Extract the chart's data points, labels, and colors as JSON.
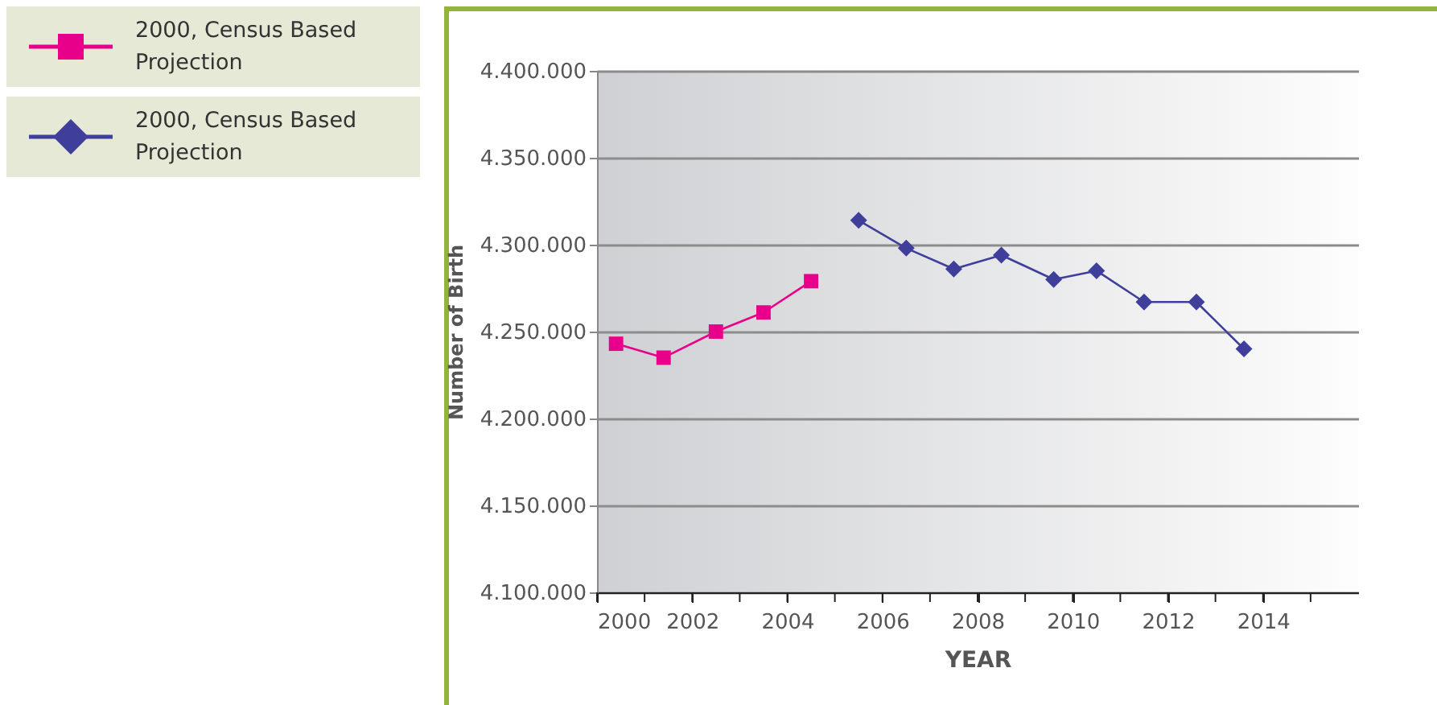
{
  "chart_data": {
    "type": "line",
    "xlabel": "YEAR",
    "ylabel": "Number of Birth",
    "xlim": [
      2000,
      2016
    ],
    "xticks": [
      2000,
      {
        "value": 2001,
        "label": null
      },
      2002,
      {
        "value": 2003,
        "label": null
      },
      2004,
      {
        "value": 2005,
        "label": null
      },
      2006,
      {
        "value": 2007,
        "label": null
      },
      2008,
      {
        "value": 2009,
        "label": null
      },
      2010,
      {
        "value": 2011,
        "label": null
      },
      2012,
      {
        "value": 2013,
        "label": null
      },
      2014,
      {
        "value": 2015,
        "label": null
      }
    ],
    "ylim": [
      4100000,
      4400000
    ],
    "yticks": [
      {
        "value": 4100000,
        "label": "4.100.000"
      },
      {
        "value": 4150000,
        "label": "4.150.000"
      },
      {
        "value": 4200000,
        "label": "4.200.000"
      },
      {
        "value": 4250000,
        "label": "4.250.000"
      },
      {
        "value": 4300000,
        "label": "4.300.000"
      },
      {
        "value": 4350000,
        "label": "4.350.000"
      },
      {
        "value": 4400000,
        "label": "4.400.000"
      }
    ],
    "grid": "y",
    "legend": "top left",
    "series": [
      {
        "name": "2000, Census Based Projection",
        "color": "#e8008a",
        "marker": "square",
        "x": [
          2000.4,
          2001.4,
          2002.5,
          2003.5,
          2004.5
        ],
        "values": [
          4243000,
          4235000,
          4250000,
          4261000,
          4279000
        ]
      },
      {
        "name": "2000, Census Based Projection",
        "color": "#3f3f9b",
        "marker": "diamond",
        "x": [
          2005.5,
          2006.5,
          2007.5,
          2008.5,
          2009.6,
          2010.5,
          2011.5,
          2012.6,
          2013.6
        ],
        "values": [
          4314000,
          4298000,
          4286000,
          4294000,
          4280000,
          4285000,
          4267000,
          4267000,
          4240000
        ]
      }
    ]
  }
}
